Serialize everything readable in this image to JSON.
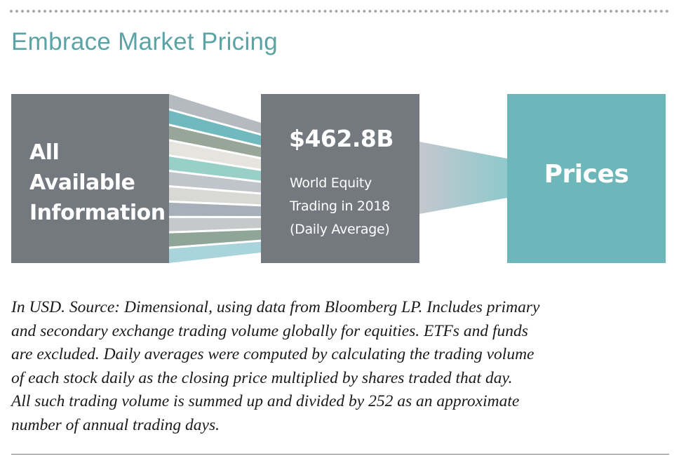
{
  "title": "Embrace Market Pricing",
  "left_box": {
    "lines": [
      "All",
      "Available",
      "Information"
    ],
    "color": "#74797f"
  },
  "middle_box": {
    "value": "$462.8B",
    "desc_lines": [
      "World Equity",
      "Trading in 2018",
      "(Daily Average)"
    ],
    "color": "#74797f"
  },
  "right_box": {
    "label": "Prices",
    "color": "#6db7bb"
  },
  "stripe_colors": [
    "#b5bac1",
    "#6fb9bf",
    "#97a699",
    "#e6e4de",
    "#98cfc6",
    "#c0c5cb",
    "#d8d9d5",
    "#a7b0b8",
    "#c5c9ca",
    "#8fa597",
    "#a9d4db"
  ],
  "footnote_lines": [
    "In USD. Source: Dimensional, using data from Bloomberg LP. Includes primary",
    "and secondary exchange trading volume globally for equities. ETFs and funds",
    "are excluded. Daily averages were computed by calculating the trading volume",
    "of each stock daily as the closing price multiplied by shares traded that day.",
    "All such trading volume is summed up and divided by 252 as an approximate",
    "number of annual trading days."
  ]
}
